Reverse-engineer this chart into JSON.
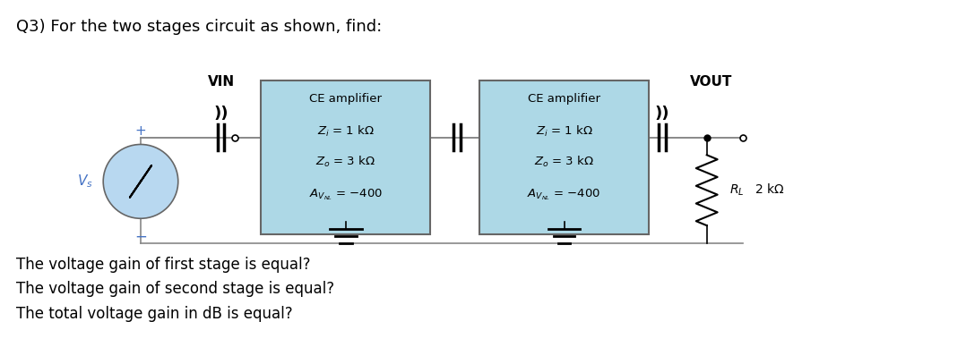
{
  "title": "Q3) For the two stages circuit as shown, find:",
  "title_fontsize": 13,
  "bg_color": "#ffffff",
  "box_color": "#add8e6",
  "box_edge_color": "#666666",
  "text_color": "#000000",
  "blue_label_color": "#4472c4",
  "questions": [
    "The voltage gain of first stage is equal?",
    "The voltage gain of second stage is equal?",
    "The total voltage gain in dB is equal?"
  ],
  "question_fontsize": 12
}
